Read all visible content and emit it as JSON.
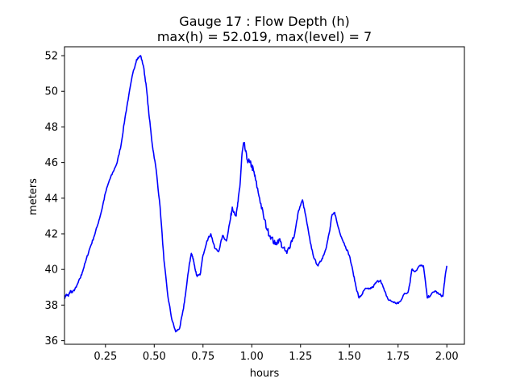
{
  "chart_data": {
    "type": "line",
    "title": "Gauge 17 : Flow Depth (h)",
    "subtitle": "max(h) =  52.019,    max(level) = 7",
    "xlabel": "hours",
    "ylabel": "meters",
    "xlim": [
      0.04,
      2.09
    ],
    "ylim": [
      35.8,
      52.5
    ],
    "xticks": [
      0.25,
      0.5,
      0.75,
      1.0,
      1.25,
      1.5,
      1.75,
      2.0
    ],
    "xtick_labels": [
      "0.25",
      "0.50",
      "0.75",
      "1.00",
      "1.25",
      "1.50",
      "1.75",
      "2.00"
    ],
    "yticks": [
      36,
      38,
      40,
      42,
      44,
      46,
      48,
      50,
      52
    ],
    "ytick_labels": [
      "36",
      "38",
      "40",
      "42",
      "44",
      "46",
      "48",
      "50",
      "52"
    ],
    "grid": false,
    "legend": false,
    "series_color": "#0000ff",
    "series": [
      {
        "x": [
          0.04,
          0.05,
          0.06,
          0.07,
          0.08,
          0.1,
          0.12,
          0.13,
          0.15,
          0.17,
          0.19,
          0.21,
          0.23,
          0.25,
          0.27,
          0.29,
          0.31,
          0.33,
          0.35,
          0.37,
          0.39,
          0.41,
          0.43,
          0.445,
          0.46,
          0.475,
          0.49,
          0.51,
          0.53,
          0.55,
          0.57,
          0.59,
          0.61,
          0.63,
          0.65,
          0.665,
          0.68,
          0.69,
          0.7,
          0.71,
          0.72,
          0.735,
          0.75,
          0.77,
          0.79,
          0.81,
          0.83,
          0.85,
          0.87,
          0.89,
          0.9,
          0.92,
          0.93,
          0.94,
          0.95,
          0.96,
          0.975,
          0.99,
          1.0,
          1.01,
          1.02,
          1.04,
          1.06,
          1.08,
          1.1,
          1.12,
          1.14,
          1.16,
          1.18,
          1.2,
          1.22,
          1.24,
          1.26,
          1.28,
          1.3,
          1.32,
          1.34,
          1.36,
          1.375,
          1.385,
          1.4,
          1.41,
          1.425,
          1.44,
          1.46,
          1.48,
          1.5,
          1.52,
          1.535,
          1.55,
          1.565,
          1.58,
          1.6,
          1.62,
          1.64,
          1.66,
          1.68,
          1.7,
          1.72,
          1.74,
          1.75,
          1.76,
          1.78,
          1.8,
          1.81,
          1.82,
          1.84,
          1.86,
          1.88,
          1.9,
          1.92,
          1.94,
          1.96,
          1.98,
          1.99,
          2.0
        ],
        "y": [
          38.4,
          38.6,
          38.5,
          38.8,
          38.7,
          39.0,
          39.5,
          39.8,
          40.5,
          41.2,
          41.8,
          42.5,
          43.3,
          44.3,
          45.0,
          45.5,
          46.0,
          47.0,
          48.5,
          49.8,
          51.0,
          51.8,
          52.0,
          51.4,
          50.2,
          48.5,
          47.0,
          45.6,
          43.5,
          40.5,
          38.5,
          37.2,
          36.5,
          36.7,
          37.8,
          39.0,
          40.3,
          40.9,
          40.6,
          40.0,
          39.6,
          39.7,
          40.8,
          41.6,
          42.0,
          41.2,
          41.0,
          41.9,
          41.6,
          42.8,
          43.5,
          43.0,
          43.8,
          44.8,
          46.5,
          47.1,
          46.2,
          46.0,
          45.8,
          45.5,
          45.0,
          44.0,
          43.0,
          42.2,
          41.8,
          41.4,
          41.7,
          41.2,
          40.9,
          41.5,
          42.0,
          43.3,
          43.9,
          42.8,
          41.5,
          40.6,
          40.2,
          40.6,
          41.0,
          41.4,
          42.2,
          43.0,
          43.2,
          42.5,
          41.8,
          41.3,
          40.8,
          39.8,
          39.0,
          38.4,
          38.6,
          38.9,
          38.9,
          39.0,
          39.3,
          39.4,
          38.8,
          38.3,
          38.2,
          38.1,
          38.1,
          38.2,
          38.6,
          38.7,
          39.2,
          40.0,
          39.9,
          40.2,
          40.2,
          38.4,
          38.6,
          38.8,
          38.6,
          38.5,
          39.5,
          40.2
        ],
        "noise": "high-frequency jitter visible, especially around x=0.95-1.2"
      }
    ]
  }
}
